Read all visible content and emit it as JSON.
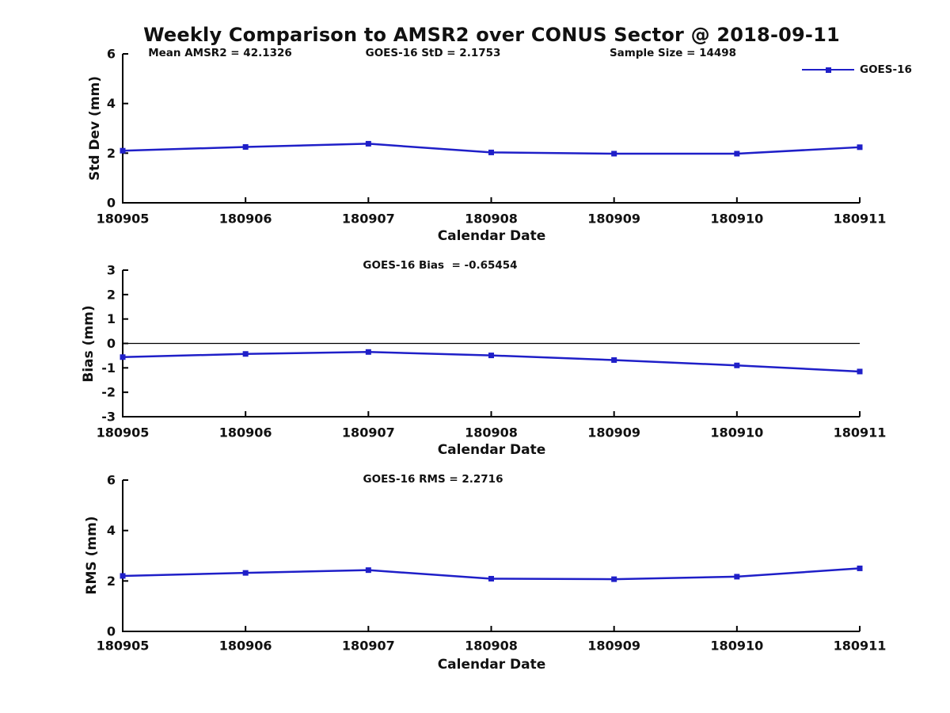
{
  "title": "Weekly Comparison to AMSR2 over CONUS Sector @ 2018-09-11",
  "colors": {
    "line": "#1f1fc8",
    "axis": "#000000",
    "text": "#111111",
    "background": "#ffffff"
  },
  "legend": {
    "label": "GOES-16"
  },
  "chart_data": [
    {
      "type": "line",
      "name": "std-dev",
      "ylabel": "Std Dev (mm)",
      "xlabel": "Calendar Date",
      "ylim": [
        0,
        6
      ],
      "yticks": [
        0,
        2,
        4,
        6
      ],
      "categories": [
        "180905",
        "180906",
        "180907",
        "180908",
        "180909",
        "180910",
        "180911"
      ],
      "series": [
        {
          "name": "GOES-16",
          "values": [
            2.1,
            2.25,
            2.38,
            2.03,
            1.98,
            1.98,
            2.24
          ]
        }
      ],
      "annotations": [
        "Mean AMSR2 = 42.1326",
        "GOES-16 StD = 2.1753",
        "Sample Size = 14498"
      ],
      "legend_position": "top-right",
      "grid": false,
      "marker": "square",
      "zeroline": false
    },
    {
      "type": "line",
      "name": "bias",
      "ylabel": "Bias (mm)",
      "xlabel": "Calendar Date",
      "ylim": [
        -3,
        3
      ],
      "yticks": [
        -3,
        -2,
        -1,
        0,
        1,
        2,
        3
      ],
      "categories": [
        "180905",
        "180906",
        "180907",
        "180908",
        "180909",
        "180910",
        "180911"
      ],
      "series": [
        {
          "name": "GOES-16",
          "values": [
            -0.56,
            -0.43,
            -0.35,
            -0.49,
            -0.68,
            -0.9,
            -1.15
          ]
        }
      ],
      "annotations": [
        "GOES-16 Bias  = -0.65454"
      ],
      "grid": false,
      "marker": "square",
      "zeroline": true
    },
    {
      "type": "line",
      "name": "rms",
      "ylabel": "RMS (mm)",
      "xlabel": "Calendar Date",
      "ylim": [
        0,
        6
      ],
      "yticks": [
        0,
        2,
        4,
        6
      ],
      "categories": [
        "180905",
        "180906",
        "180907",
        "180908",
        "180909",
        "180910",
        "180911"
      ],
      "series": [
        {
          "name": "GOES-16",
          "values": [
            2.2,
            2.32,
            2.43,
            2.09,
            2.07,
            2.17,
            2.5
          ]
        }
      ],
      "annotations": [
        "GOES-16 RMS = 2.2716"
      ],
      "grid": false,
      "marker": "square",
      "zeroline": false
    }
  ]
}
